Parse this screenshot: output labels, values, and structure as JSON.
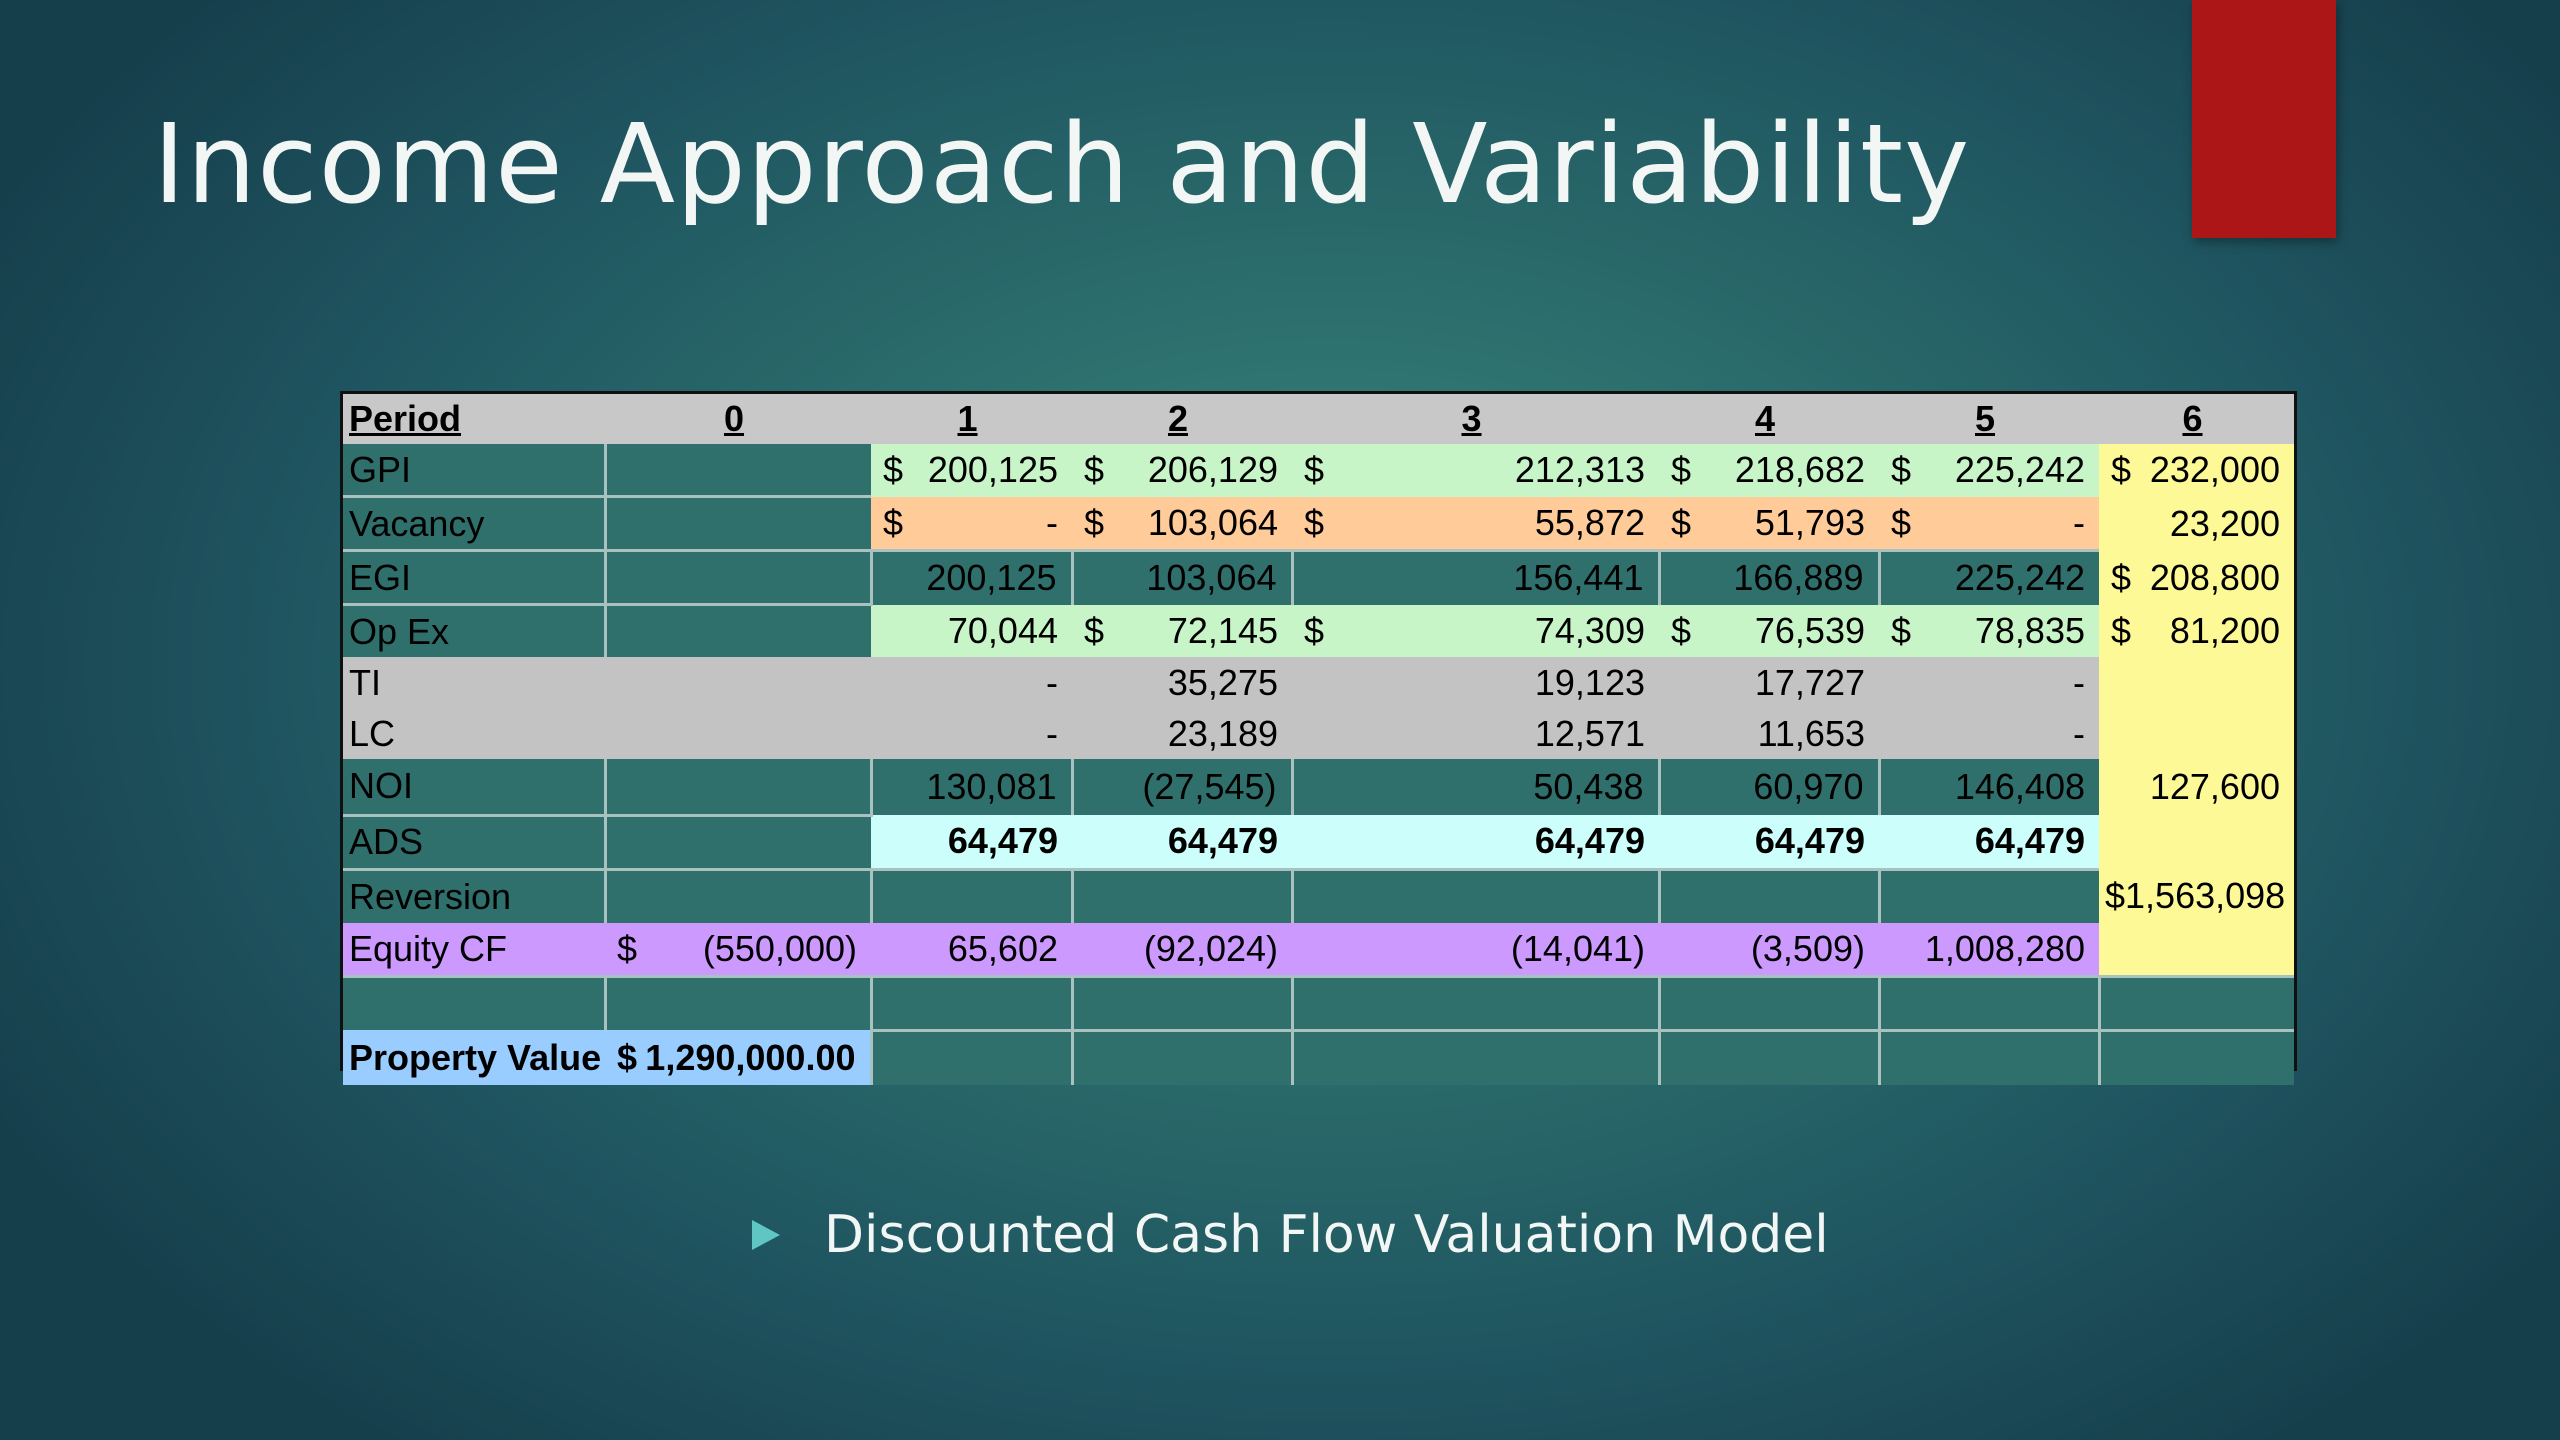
{
  "slide": {
    "title": "Income Approach and Variability",
    "bullet": "Discounted Cash Flow Valuation Model",
    "colors": {
      "accent_rect": "#ad1616",
      "bullet_icon": "#5fc6c4",
      "background": "#2c6f6d"
    },
    "bullet_icon": "triangle-right-icon"
  },
  "table": {
    "header": [
      "Period",
      "0",
      "1",
      "2",
      "3",
      "4",
      "5",
      "6"
    ],
    "gpi": {
      "label": "GPI",
      "c1": "200,125",
      "c2": "206,129",
      "c3": "212,313",
      "c4": "218,682",
      "c5": "225,242",
      "c6": "232,000"
    },
    "vacancy": {
      "label": "Vacancy",
      "c1": "-",
      "c2": "103,064",
      "c3": "55,872",
      "c4": "51,793",
      "c5": "-",
      "c6": "23,200"
    },
    "egi": {
      "label": "EGI",
      "c1": "200,125",
      "c2": "103,064",
      "c3": "156,441",
      "c4": "166,889",
      "c5": "225,242",
      "c6": "208,800"
    },
    "opex": {
      "label": "Op Ex",
      "c1": "70,044",
      "c2": "72,145",
      "c3": "74,309",
      "c4": "76,539",
      "c5": "78,835",
      "c6": "81,200"
    },
    "ti": {
      "label": "TI",
      "c1": "-",
      "c2": "35,275",
      "c3": "19,123",
      "c4": "17,727",
      "c5": "-"
    },
    "lc": {
      "label": "LC",
      "c1": "-",
      "c2": "23,189",
      "c3": "12,571",
      "c4": "11,653",
      "c5": "-"
    },
    "noi": {
      "label": "NOI",
      "c1": "130,081",
      "c2": "(27,545)",
      "c3": "50,438",
      "c4": "60,970",
      "c5": "146,408",
      "c6": "127,600"
    },
    "ads": {
      "label": "ADS",
      "c1": "64,479",
      "c2": "64,479",
      "c3": "64,479",
      "c4": "64,479",
      "c5": "64,479"
    },
    "reversion": {
      "label": "Reversion",
      "c6": "$1,563,098"
    },
    "equity_cf": {
      "label": "Equity CF",
      "c0": "(550,000)",
      "c1": "65,602",
      "c2": "(92,024)",
      "c3": "(14,041)",
      "c4": "(3,509)",
      "c5": "1,008,280"
    },
    "property_value": {
      "label": "Property Value",
      "value": "1,290,000.00"
    },
    "currency": "$"
  }
}
